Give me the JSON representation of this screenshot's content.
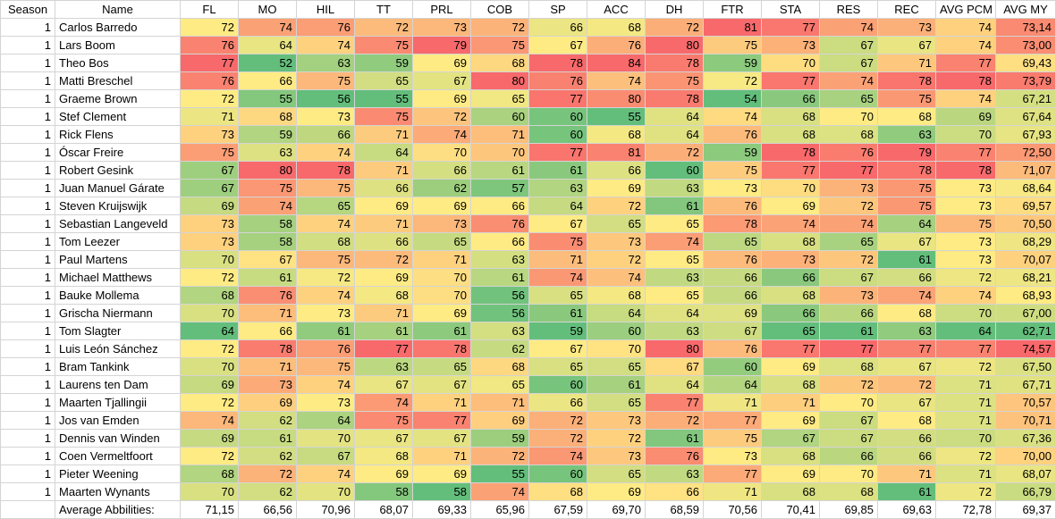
{
  "headers": [
    "Season",
    "Name",
    "FL",
    "MO",
    "HIL",
    "TT",
    "PRL",
    "COB",
    "SP",
    "ACC",
    "DH",
    "FTR",
    "STA",
    "RES",
    "REC",
    "AVG PCM",
    "AVG MY"
  ],
  "colors": {
    "low": "#63be7b",
    "mid": "#ffeb84",
    "high": "#f8696b"
  },
  "rows": [
    {
      "season": "1",
      "name": "Carlos Barredo",
      "values": [
        "72",
        "74",
        "76",
        "72",
        "73",
        "72",
        "66",
        "68",
        "72",
        "81",
        "77",
        "74",
        "73",
        "74",
        "73,14"
      ]
    },
    {
      "season": "1",
      "name": "Lars Boom",
      "values": [
        "76",
        "64",
        "74",
        "75",
        "79",
        "75",
        "67",
        "76",
        "80",
        "75",
        "73",
        "67",
        "67",
        "74",
        "73,00"
      ]
    },
    {
      "season": "1",
      "name": "Theo Bos",
      "values": [
        "77",
        "52",
        "63",
        "59",
        "69",
        "68",
        "78",
        "84",
        "78",
        "59",
        "70",
        "67",
        "71",
        "77",
        "69,43"
      ]
    },
    {
      "season": "1",
      "name": "Matti Breschel",
      "values": [
        "76",
        "66",
        "75",
        "65",
        "67",
        "80",
        "76",
        "74",
        "75",
        "72",
        "77",
        "74",
        "78",
        "78",
        "73,79"
      ]
    },
    {
      "season": "1",
      "name": "Graeme Brown",
      "values": [
        "72",
        "55",
        "56",
        "55",
        "69",
        "65",
        "77",
        "80",
        "78",
        "54",
        "66",
        "65",
        "75",
        "74",
        "67,21"
      ]
    },
    {
      "season": "1",
      "name": "Stef Clement",
      "values": [
        "71",
        "68",
        "73",
        "75",
        "72",
        "60",
        "60",
        "55",
        "64",
        "74",
        "68",
        "70",
        "68",
        "69",
        "67,64"
      ]
    },
    {
      "season": "1",
      "name": "Rick Flens",
      "values": [
        "73",
        "59",
        "66",
        "71",
        "74",
        "71",
        "60",
        "68",
        "64",
        "76",
        "68",
        "68",
        "63",
        "70",
        "67,93"
      ]
    },
    {
      "season": "1",
      "name": "Óscar Freire",
      "values": [
        "75",
        "63",
        "74",
        "64",
        "70",
        "70",
        "77",
        "81",
        "72",
        "59",
        "78",
        "76",
        "79",
        "77",
        "72,50"
      ]
    },
    {
      "season": "1",
      "name": "Robert Gesink",
      "values": [
        "67",
        "80",
        "78",
        "71",
        "66",
        "61",
        "61",
        "66",
        "60",
        "75",
        "77",
        "77",
        "78",
        "78",
        "71,07"
      ]
    },
    {
      "season": "1",
      "name": "Juan Manuel Gárate",
      "values": [
        "67",
        "75",
        "75",
        "66",
        "62",
        "57",
        "63",
        "69",
        "63",
        "73",
        "70",
        "73",
        "75",
        "73",
        "68,64"
      ]
    },
    {
      "season": "1",
      "name": "Steven Kruijswijk",
      "values": [
        "69",
        "74",
        "65",
        "69",
        "69",
        "66",
        "64",
        "72",
        "61",
        "76",
        "69",
        "72",
        "75",
        "73",
        "69,57"
      ]
    },
    {
      "season": "1",
      "name": "Sebastian Langeveld",
      "values": [
        "73",
        "58",
        "74",
        "71",
        "73",
        "76",
        "67",
        "65",
        "65",
        "78",
        "74",
        "74",
        "64",
        "75",
        "70,50"
      ]
    },
    {
      "season": "1",
      "name": "Tom Leezer",
      "values": [
        "73",
        "58",
        "68",
        "66",
        "65",
        "66",
        "75",
        "73",
        "74",
        "65",
        "68",
        "65",
        "67",
        "73",
        "68,29"
      ]
    },
    {
      "season": "1",
      "name": "Paul Martens",
      "values": [
        "70",
        "67",
        "75",
        "72",
        "71",
        "63",
        "71",
        "72",
        "65",
        "76",
        "73",
        "72",
        "61",
        "73",
        "70,07"
      ]
    },
    {
      "season": "1",
      "name": "Michael Matthews",
      "values": [
        "72",
        "61",
        "72",
        "69",
        "70",
        "61",
        "74",
        "74",
        "63",
        "66",
        "66",
        "67",
        "66",
        "72",
        "68,21"
      ]
    },
    {
      "season": "1",
      "name": "Bauke Mollema",
      "values": [
        "68",
        "76",
        "74",
        "68",
        "70",
        "56",
        "65",
        "68",
        "65",
        "66",
        "68",
        "73",
        "74",
        "74",
        "68,93"
      ]
    },
    {
      "season": "1",
      "name": "Grischa Niermann",
      "values": [
        "70",
        "71",
        "73",
        "71",
        "69",
        "56",
        "61",
        "64",
        "64",
        "69",
        "66",
        "66",
        "68",
        "70",
        "67,00"
      ]
    },
    {
      "season": "1",
      "name": "Tom Slagter",
      "values": [
        "64",
        "66",
        "61",
        "61",
        "61",
        "63",
        "59",
        "60",
        "63",
        "67",
        "65",
        "61",
        "63",
        "64",
        "62,71"
      ]
    },
    {
      "season": "1",
      "name": "Luis León Sánchez",
      "values": [
        "72",
        "78",
        "76",
        "77",
        "78",
        "62",
        "67",
        "70",
        "80",
        "76",
        "77",
        "77",
        "77",
        "77",
        "74,57"
      ]
    },
    {
      "season": "1",
      "name": "Bram Tankink",
      "values": [
        "70",
        "71",
        "75",
        "63",
        "65",
        "68",
        "65",
        "65",
        "67",
        "60",
        "69",
        "68",
        "67",
        "72",
        "67,50"
      ]
    },
    {
      "season": "1",
      "name": "Laurens ten Dam",
      "values": [
        "69",
        "73",
        "74",
        "67",
        "67",
        "65",
        "60",
        "61",
        "64",
        "64",
        "68",
        "72",
        "72",
        "71",
        "67,71"
      ]
    },
    {
      "season": "1",
      "name": "Maarten Tjallingii",
      "values": [
        "72",
        "69",
        "73",
        "74",
        "71",
        "71",
        "66",
        "65",
        "77",
        "71",
        "71",
        "70",
        "67",
        "71",
        "70,57"
      ]
    },
    {
      "season": "1",
      "name": "Jos van Emden",
      "values": [
        "74",
        "62",
        "64",
        "75",
        "77",
        "69",
        "72",
        "73",
        "72",
        "77",
        "69",
        "67",
        "68",
        "71",
        "70,71"
      ]
    },
    {
      "season": "1",
      "name": "Dennis van Winden",
      "values": [
        "69",
        "61",
        "70",
        "67",
        "67",
        "59",
        "72",
        "72",
        "61",
        "75",
        "67",
        "67",
        "66",
        "70",
        "67,36"
      ]
    },
    {
      "season": "1",
      "name": "Coen Vermeltfoort",
      "values": [
        "72",
        "62",
        "67",
        "68",
        "71",
        "72",
        "74",
        "73",
        "76",
        "73",
        "68",
        "66",
        "66",
        "72",
        "70,00"
      ]
    },
    {
      "season": "1",
      "name": "Pieter Weening",
      "values": [
        "68",
        "72",
        "74",
        "69",
        "69",
        "55",
        "60",
        "65",
        "63",
        "77",
        "69",
        "70",
        "71",
        "71",
        "68,07"
      ]
    },
    {
      "season": "1",
      "name": "Maarten Wynants",
      "values": [
        "70",
        "62",
        "70",
        "58",
        "58",
        "74",
        "68",
        "69",
        "66",
        "71",
        "68",
        "68",
        "61",
        "72",
        "66,79"
      ]
    }
  ],
  "average": {
    "label": "Average Abbilities:",
    "values": [
      "71,15",
      "66,56",
      "70,96",
      "68,07",
      "69,33",
      "65,96",
      "67,59",
      "69,70",
      "68,59",
      "70,56",
      "70,41",
      "69,85",
      "69,63",
      "72,78",
      "69,37"
    ]
  }
}
